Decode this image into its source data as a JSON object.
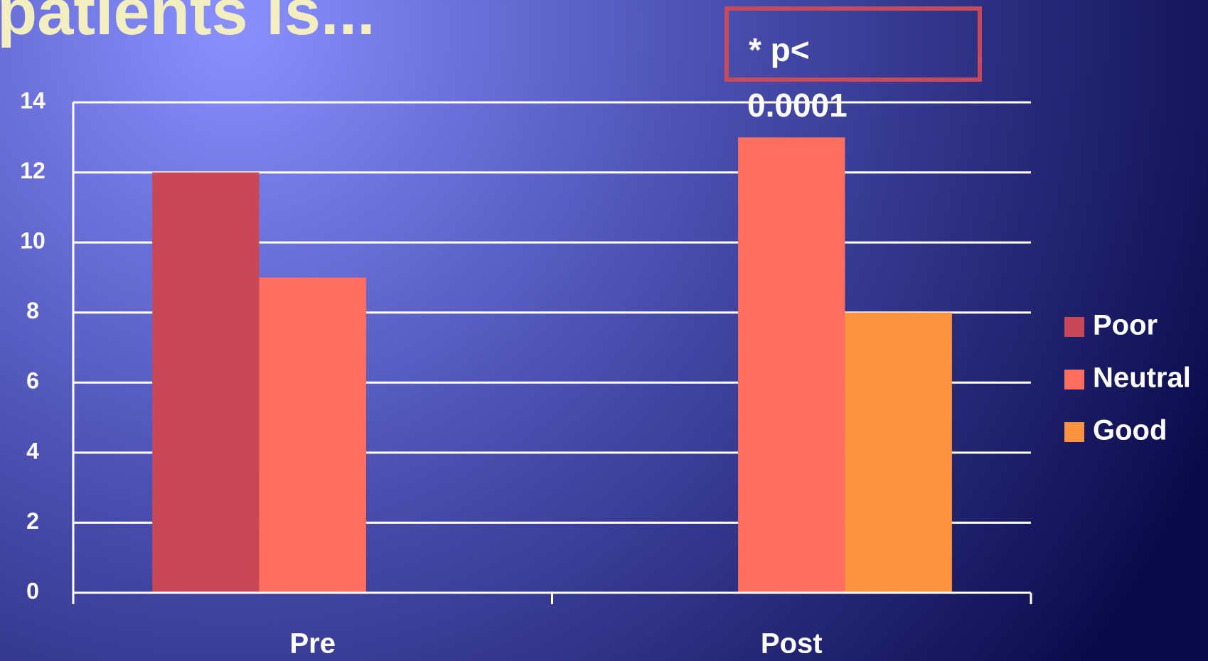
{
  "chart_data": {
    "type": "bar",
    "title": "patients is...",
    "annotation": [
      "* p<",
      "0.0001"
    ],
    "categories": [
      "Pre",
      "Post"
    ],
    "series": [
      {
        "name": "Poor",
        "color": "#c8485a",
        "values": [
          12,
          0
        ]
      },
      {
        "name": "Neutral",
        "color": "#ff6e5e",
        "values": [
          9,
          13
        ]
      },
      {
        "name": "Good",
        "color": "#ff9440",
        "values": [
          0,
          8
        ]
      }
    ],
    "ylim": [
      0,
      14
    ],
    "yticks": [
      0,
      2,
      4,
      6,
      8,
      10,
      12,
      14
    ],
    "grid": true,
    "legend": "right"
  }
}
